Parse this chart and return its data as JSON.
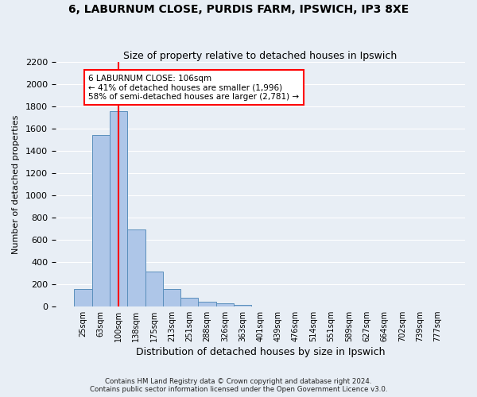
{
  "title1": "6, LABURNUM CLOSE, PURDIS FARM, IPSWICH, IP3 8XE",
  "title2": "Size of property relative to detached houses in Ipswich",
  "xlabel": "Distribution of detached houses by size in Ipswich",
  "ylabel": "Number of detached properties",
  "footnote": "Contains HM Land Registry data © Crown copyright and database right 2024.\nContains public sector information licensed under the Open Government Licence v3.0.",
  "bin_labels": [
    "25sqm",
    "63sqm",
    "100sqm",
    "138sqm",
    "175sqm",
    "213sqm",
    "251sqm",
    "288sqm",
    "326sqm",
    "363sqm",
    "401sqm",
    "439sqm",
    "476sqm",
    "514sqm",
    "551sqm",
    "589sqm",
    "627sqm",
    "664sqm",
    "702sqm",
    "739sqm",
    "777sqm"
  ],
  "bar_values": [
    155,
    1540,
    1760,
    690,
    310,
    155,
    80,
    40,
    25,
    15,
    0,
    0,
    0,
    0,
    0,
    0,
    0,
    0,
    0,
    0,
    0
  ],
  "bar_color": "#aec6e8",
  "bar_edge_color": "#5a8fbc",
  "property_line_x": 2,
  "property_line_color": "red",
  "annotation_text": "6 LABURNUM CLOSE: 106sqm\n← 41% of detached houses are smaller (1,996)\n58% of semi-detached houses are larger (2,781) →",
  "annotation_box_color": "white",
  "annotation_box_edge_color": "red",
  "ylim": [
    0,
    2200
  ],
  "yticks": [
    0,
    200,
    400,
    600,
    800,
    1000,
    1200,
    1400,
    1600,
    1800,
    2000,
    2200
  ],
  "background_color": "#e8eef5",
  "grid_color": "white"
}
